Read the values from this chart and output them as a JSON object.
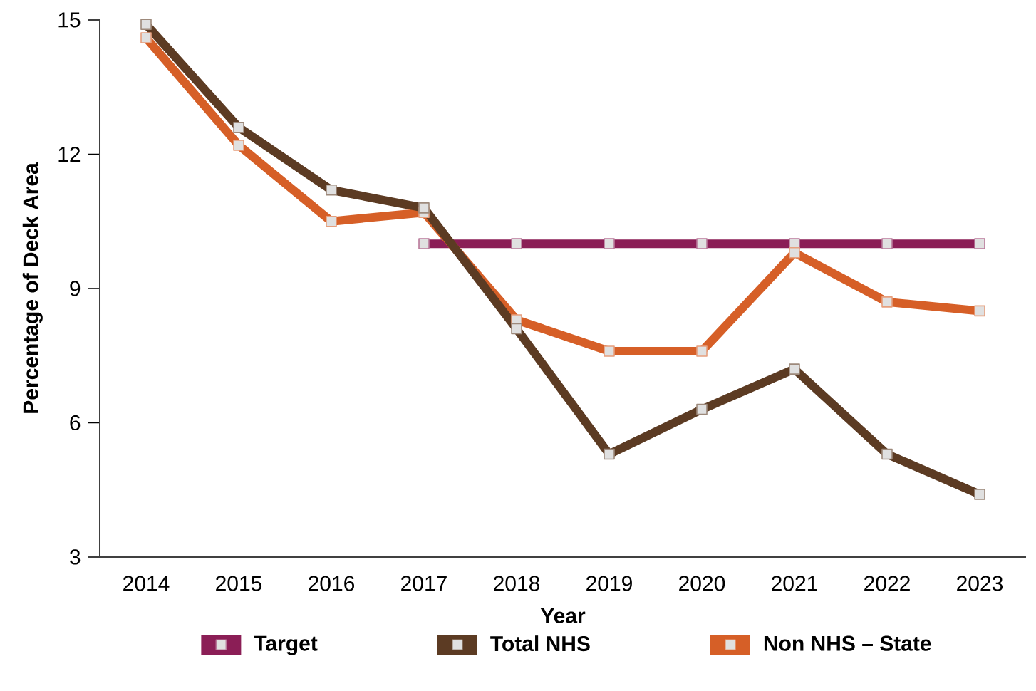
{
  "chart_data": {
    "type": "line",
    "xlabel": "Year",
    "ylabel": "Percentage of Deck Area",
    "categories": [
      "2014",
      "2015",
      "2016",
      "2017",
      "2018",
      "2019",
      "2020",
      "2021",
      "2022",
      "2023"
    ],
    "series": [
      {
        "name": "Target",
        "color": "#8b1e56",
        "values": [
          null,
          null,
          null,
          10,
          10,
          10,
          10,
          10,
          10,
          10
        ]
      },
      {
        "name": "Total NHS",
        "color": "#5c3b23",
        "values": [
          14.9,
          12.6,
          11.2,
          10.8,
          8.1,
          5.3,
          6.3,
          7.2,
          5.3,
          4.4
        ]
      },
      {
        "name": "Non NHS – State",
        "color": "#d65f27",
        "values": [
          14.6,
          12.2,
          10.5,
          10.7,
          8.3,
          7.6,
          7.6,
          9.8,
          8.7,
          8.5
        ]
      }
    ],
    "ylim": [
      3,
      15
    ],
    "yticks": [
      3,
      6,
      9,
      12,
      15
    ],
    "grid": false,
    "legend": "bottom",
    "marker": "square",
    "line_style": "solid"
  }
}
